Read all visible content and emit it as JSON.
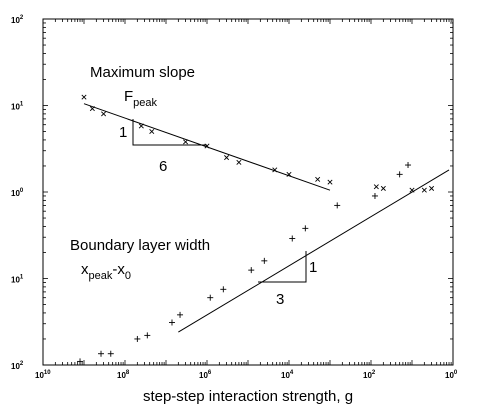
{
  "chart_data": {
    "type": "scatter",
    "title": "",
    "xlabel": "step-step interaction strength, g",
    "ylabel": "",
    "x_scale": "log",
    "y_scale": "log",
    "xlim": [
      1e-10,
      1
    ],
    "ylim": [
      0.01,
      100
    ],
    "x_ticks": [
      {
        "value": 1e-10,
        "base": "10",
        "exp": "10"
      },
      {
        "value": 1e-08,
        "base": "10",
        "exp": "8"
      },
      {
        "value": 1e-06,
        "base": "10",
        "exp": "6"
      },
      {
        "value": 0.0001,
        "base": "10",
        "exp": "4"
      },
      {
        "value": 0.01,
        "base": "10",
        "exp": "2"
      },
      {
        "value": 1,
        "base": "10",
        "exp": "0"
      }
    ],
    "y_ticks": [
      {
        "value": 0.01,
        "base": "10",
        "exp": "2"
      },
      {
        "value": 0.1,
        "base": "10",
        "exp": "1"
      },
      {
        "value": 1,
        "base": "10",
        "exp": "0"
      },
      {
        "value": 10,
        "base": "10",
        "exp": "1"
      },
      {
        "value": 100,
        "base": "10",
        "exp": "2"
      }
    ],
    "series": [
      {
        "marker": "x",
        "points": [
          [
            1e-09,
            12.5
          ],
          [
            1.6e-09,
            9.2
          ],
          [
            3e-09,
            8.0
          ],
          [
            2.5e-08,
            5.8
          ],
          [
            4.5e-08,
            5.0
          ],
          [
            3e-07,
            3.8
          ],
          [
            1e-06,
            3.4
          ],
          [
            3e-06,
            2.5
          ],
          [
            6e-06,
            2.2
          ],
          [
            4.5e-05,
            1.8
          ],
          [
            0.0001,
            1.6
          ],
          [
            0.0005,
            1.4
          ],
          [
            0.001,
            1.3
          ],
          [
            0.0135,
            1.15
          ],
          [
            0.02,
            1.1
          ],
          [
            0.1,
            1.05
          ],
          [
            0.2,
            1.05
          ],
          [
            0.3,
            1.1
          ]
        ]
      },
      {
        "marker": "+",
        "points": [
          [
            8e-10,
            0.011
          ],
          [
            2.6e-09,
            0.0135
          ],
          [
            4.5e-09,
            0.0135
          ],
          [
            2e-08,
            0.02
          ],
          [
            3.5e-08,
            0.022
          ],
          [
            1.4e-07,
            0.031
          ],
          [
            2.2e-07,
            0.038
          ],
          [
            1.2e-06,
            0.06
          ],
          [
            2.5e-06,
            0.075
          ],
          [
            1.2e-05,
            0.125
          ],
          [
            2.5e-05,
            0.16
          ],
          [
            0.00012,
            0.29
          ],
          [
            0.00025,
            0.38
          ],
          [
            0.0015,
            0.7
          ],
          [
            0.0125,
            0.9
          ],
          [
            0.05,
            1.6
          ],
          [
            0.08,
            2.05
          ]
        ]
      }
    ],
    "fit_lines": [
      {
        "x": [
          1e-09,
          0.001
        ],
        "y": [
          10.5,
          1.05
        ]
      },
      {
        "x": [
          2e-07,
          0.8
        ],
        "y": [
          0.024,
          1.8
        ]
      }
    ],
    "annotations": {
      "top_title": "Maximum slope",
      "top_label": "F",
      "top_label_sub": "peak",
      "top_triangle_rise": "1",
      "top_triangle_run": "6",
      "bottom_title": "Boundary layer width",
      "bottom_label_x": "x",
      "bottom_label_sub1": "peak",
      "bottom_label_dash": "-x",
      "bottom_label_sub2": "0",
      "bottom_triangle_rise": "1",
      "bottom_triangle_run": "3"
    }
  }
}
